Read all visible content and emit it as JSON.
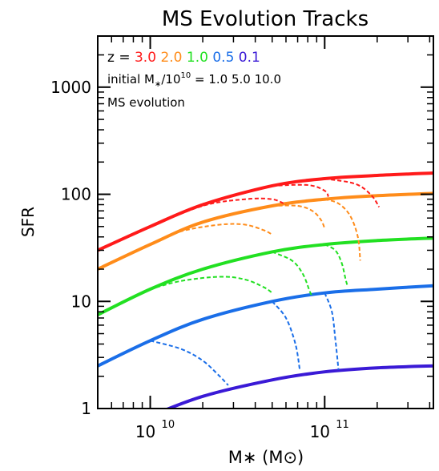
{
  "chart_data": {
    "type": "line",
    "title": "MS Evolution Tracks",
    "xlabel": "M∗ (M⊙)",
    "ylabel": "SFR",
    "xscale": "log",
    "yscale": "log",
    "xlim": [
      5000000000.0,
      420000000000.0
    ],
    "ylim": [
      1,
      3000
    ],
    "x_ticks": [
      {
        "value": 10000000000.0,
        "base": "10",
        "exp": "10"
      },
      {
        "value": 100000000000.0,
        "base": "10",
        "exp": "11"
      }
    ],
    "y_ticks": [
      {
        "value": 1,
        "label": "1"
      },
      {
        "value": 10,
        "label": "10"
      },
      {
        "value": 100,
        "label": "100"
      },
      {
        "value": 1000,
        "label": "1000"
      }
    ],
    "legend": {
      "z_prefix": "z  =",
      "z_entries": [
        {
          "label": "3.0",
          "color": "#ff1a1a"
        },
        {
          "label": "2.0",
          "color": "#ff8c1a"
        },
        {
          "label": "1.0",
          "color": "#22e022"
        },
        {
          "label": "0.5",
          "color": "#1a6ee8"
        },
        {
          "label": "0.1",
          "color": "#3a1ad6"
        }
      ],
      "mass_prefix": "initial M",
      "mass_sub": "∗",
      "mass_mid": "/10",
      "mass_sup": "10",
      "mass_suffix": " =   1.0  5.0  10.0",
      "evolution_label": "MS evolution",
      "placement": "top-left"
    },
    "main_sequence": [
      {
        "z": "3.0",
        "color": "#ff1a1a",
        "x": [
          5000000000.0,
          10000000000.0,
          20000000000.0,
          50000000000.0,
          100000000000.0,
          200000000000.0,
          420000000000.0
        ],
        "y": [
          30,
          50,
          80,
          120,
          140,
          150,
          158
        ]
      },
      {
        "z": "2.0",
        "color": "#ff8c1a",
        "x": [
          5000000000.0,
          10000000000.0,
          20000000000.0,
          50000000000.0,
          100000000000.0,
          200000000000.0,
          420000000000.0
        ],
        "y": [
          20,
          34,
          55,
          78,
          90,
          97,
          102
        ]
      },
      {
        "z": "1.0",
        "color": "#22e022",
        "x": [
          5000000000.0,
          10000000000.0,
          20000000000.0,
          50000000000.0,
          100000000000.0,
          200000000000.0,
          420000000000.0
        ],
        "y": [
          7.5,
          13,
          20,
          29,
          34,
          37,
          39
        ]
      },
      {
        "z": "0.5",
        "color": "#1a6ee8",
        "x": [
          5000000000.0,
          10000000000.0,
          20000000000.0,
          50000000000.0,
          100000000000.0,
          200000000000.0,
          420000000000.0
        ],
        "y": [
          2.5,
          4.3,
          6.8,
          10,
          12,
          13,
          14
        ]
      },
      {
        "z": "0.1",
        "color": "#3a1ad6",
        "x": [
          10000000000.0,
          20000000000.0,
          50000000000.0,
          100000000000.0,
          200000000000.0,
          420000000000.0
        ],
        "y": [
          0.85,
          1.3,
          1.85,
          2.2,
          2.4,
          2.5
        ]
      }
    ],
    "evolution_tracks": [
      {
        "z_start": "3.0",
        "color": "#ff1a1a",
        "initial_mass": "1.0",
        "x": [
          10000000000.0,
          20000000000.0,
          35000000000.0,
          50000000000.0,
          60000000000.0
        ],
        "y": [
          50,
          78,
          90,
          90,
          80
        ]
      },
      {
        "z_start": "3.0",
        "color": "#ff1a1a",
        "initial_mass": "5.0",
        "x": [
          50000000000.0,
          80000000000.0,
          100000000000.0,
          105000000000.0
        ],
        "y": [
          120,
          122,
          108,
          95
        ]
      },
      {
        "z_start": "3.0",
        "color": "#ff1a1a",
        "initial_mass": "10.0",
        "x": [
          100000000000.0,
          150000000000.0,
          185000000000.0,
          205000000000.0
        ],
        "y": [
          140,
          125,
          98,
          76
        ]
      },
      {
        "z_start": "2.0",
        "color": "#ff8c1a",
        "initial_mass": "1.0",
        "x": [
          10000000000.0,
          15000000000.0,
          25000000000.0,
          35000000000.0,
          45000000000.0,
          50000000000.0
        ],
        "y": [
          34,
          45,
          52,
          52,
          46,
          42
        ]
      },
      {
        "z_start": "2.0",
        "color": "#ff8c1a",
        "initial_mass": "5.0",
        "x": [
          50000000000.0,
          70000000000.0,
          85000000000.0,
          95000000000.0,
          100000000000.0
        ],
        "y": [
          78,
          78,
          70,
          58,
          48
        ]
      },
      {
        "z_start": "2.0",
        "color": "#ff8c1a",
        "initial_mass": "10.0",
        "x": [
          100000000000.0,
          120000000000.0,
          140000000000.0,
          155000000000.0,
          160000000000.0
        ],
        "y": [
          90,
          82,
          63,
          40,
          24
        ]
      },
      {
        "z_start": "1.0",
        "color": "#22e022",
        "initial_mass": "1.0",
        "x": [
          10000000000.0,
          15000000000.0,
          25000000000.0,
          35000000000.0,
          45000000000.0,
          50000000000.0
        ],
        "y": [
          13,
          15.5,
          17,
          16,
          13.5,
          12
        ]
      },
      {
        "z_start": "1.0",
        "color": "#22e022",
        "initial_mass": "5.0",
        "x": [
          50000000000.0,
          65000000000.0,
          75000000000.0,
          82000000000.0,
          85000000000.0
        ],
        "y": [
          29,
          24,
          18,
          12.5,
          11
        ]
      },
      {
        "z_start": "1.0",
        "color": "#22e022",
        "initial_mass": "10.0",
        "x": [
          100000000000.0,
          115000000000.0,
          125000000000.0,
          132000000000.0,
          135000000000.0
        ],
        "y": [
          34,
          30,
          23,
          16,
          14
        ]
      },
      {
        "z_start": "0.5",
        "color": "#1a6ee8",
        "initial_mass": "1.0",
        "x": [
          10000000000.0,
          15000000000.0,
          20000000000.0,
          25000000000.0,
          28000000000.0
        ],
        "y": [
          4.3,
          3.6,
          2.8,
          2.0,
          1.65
        ]
      },
      {
        "z_start": "0.5",
        "color": "#1a6ee8",
        "initial_mass": "5.0",
        "x": [
          50000000000.0,
          60000000000.0,
          68000000000.0,
          72000000000.0
        ],
        "y": [
          10,
          7,
          4,
          2.3
        ]
      },
      {
        "z_start": "0.5",
        "color": "#1a6ee8",
        "initial_mass": "10.0",
        "x": [
          100000000000.0,
          110000000000.0,
          115000000000.0,
          120000000000.0
        ],
        "y": [
          12,
          8,
          4.5,
          2.3
        ]
      }
    ],
    "grid": false
  }
}
